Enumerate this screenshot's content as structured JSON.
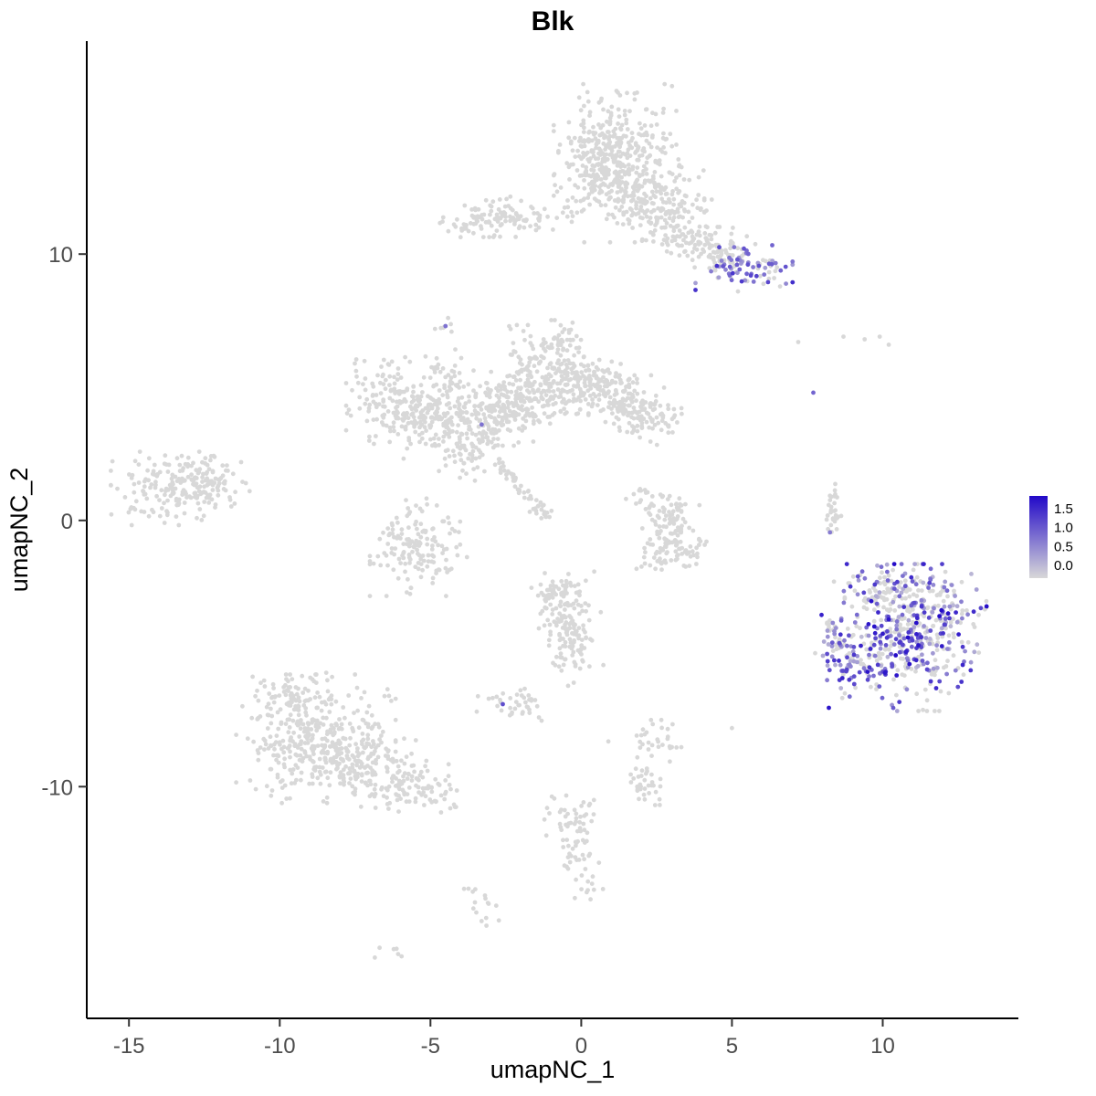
{
  "chart_data": {
    "type": "scatter",
    "title": "Blk",
    "xlabel": "umapNC_1",
    "ylabel": "umapNC_2",
    "xlim": [
      -16.4,
      14.5
    ],
    "ylim": [
      -18.7,
      18.0
    ],
    "xticks": [
      "-15",
      "-10",
      "-5",
      "0",
      "5",
      "10"
    ],
    "xtick_values": [
      -15,
      -10,
      -5,
      0,
      5,
      10
    ],
    "yticks": [
      "-10",
      "0",
      "10"
    ],
    "ytick_values": [
      -10,
      0,
      10
    ],
    "grid": false,
    "legend_position": "right",
    "value_range": [
      0,
      1.8
    ],
    "point_radius": 2.4,
    "colors": {
      "low": "#D8D8D8",
      "high": "#2209C8",
      "axis": "#000000",
      "tick_label": "#4d4d4d"
    },
    "legend": {
      "ticks": [
        "1.5",
        "1.0",
        "0.5",
        "0.0"
      ]
    },
    "clusters": [
      {
        "name": "top-main-core",
        "cx": 1.2,
        "cy": 14.2,
        "rx": 0.85,
        "ry": 0.95,
        "n": 230
      },
      {
        "name": "top-main-mid",
        "cx": 1.9,
        "cy": 12.4,
        "rx": 0.95,
        "ry": 0.85,
        "n": 200
      },
      {
        "name": "top-main-left",
        "cx": 0.7,
        "cy": 13.0,
        "rx": 0.7,
        "ry": 0.8,
        "n": 130
      },
      {
        "name": "top-main-low",
        "cx": 2.9,
        "cy": 11.3,
        "rx": 0.65,
        "ry": 0.55,
        "n": 100
      },
      {
        "name": "top-main-arm",
        "cx": 3.8,
        "cy": 10.6,
        "rx": 0.55,
        "ry": 0.45,
        "n": 55
      },
      {
        "name": "top-bridge",
        "cx": 4.6,
        "cy": 10.1,
        "rx": 0.5,
        "ry": 0.35,
        "n": 25
      },
      {
        "name": "top-left-bar",
        "cx": -2.5,
        "cy": 11.4,
        "rx": 0.95,
        "ry": 0.33,
        "n": 105
      },
      {
        "name": "top-left-tip",
        "cx": -3.9,
        "cy": 11.1,
        "rx": 0.3,
        "ry": 0.22,
        "n": 20
      },
      {
        "name": "blk-pos-small",
        "cx": 5.4,
        "cy": 9.5,
        "rx": 0.7,
        "ry": 0.38,
        "n": 75,
        "f": 0.85,
        "vr": [
          0.4,
          1.5
        ]
      },
      {
        "name": "blk-pos-small-gray",
        "cx": 4.8,
        "cy": 9.8,
        "rx": 0.45,
        "ry": 0.3,
        "n": 28
      },
      {
        "name": "top-right-sparse",
        "cx": 6.2,
        "cy": 9.2,
        "rx": 0.3,
        "ry": 0.25,
        "n": 8
      },
      {
        "name": "tiny-upper",
        "cx": -4.5,
        "cy": 7.3,
        "rx": 0.22,
        "ry": 0.2,
        "n": 7
      },
      {
        "name": "central-l1",
        "cx": -6.3,
        "cy": 4.6,
        "rx": 0.65,
        "ry": 0.75,
        "n": 120
      },
      {
        "name": "central-l2",
        "cx": -5.3,
        "cy": 3.7,
        "rx": 0.55,
        "ry": 0.6,
        "n": 85
      },
      {
        "name": "central-l3",
        "cx": -4.6,
        "cy": 5.5,
        "rx": 0.35,
        "ry": 0.4,
        "n": 30
      },
      {
        "name": "central-l4",
        "cx": -4.3,
        "cy": 4.3,
        "rx": 0.55,
        "ry": 0.65,
        "n": 100
      },
      {
        "name": "central-l5",
        "cx": -3.3,
        "cy": 3.7,
        "rx": 0.55,
        "ry": 0.6,
        "n": 100
      },
      {
        "name": "central-m1",
        "cx": -2.3,
        "cy": 4.3,
        "rx": 0.6,
        "ry": 0.65,
        "n": 115
      },
      {
        "name": "central-m2",
        "cx": -1.3,
        "cy": 4.9,
        "rx": 0.55,
        "ry": 0.55,
        "n": 100
      },
      {
        "name": "central-m3",
        "cx": -0.3,
        "cy": 5.4,
        "rx": 0.55,
        "ry": 0.6,
        "n": 105
      },
      {
        "name": "central-r1",
        "cx": 0.7,
        "cy": 4.9,
        "rx": 0.55,
        "ry": 0.55,
        "n": 95
      },
      {
        "name": "central-r2",
        "cx": 1.6,
        "cy": 4.3,
        "rx": 0.5,
        "ry": 0.5,
        "n": 80
      },
      {
        "name": "central-r3",
        "cx": 2.3,
        "cy": 3.7,
        "rx": 0.45,
        "ry": 0.45,
        "n": 60
      },
      {
        "name": "central-spur1",
        "cx": -1.6,
        "cy": 6.3,
        "rx": 0.4,
        "ry": 0.45,
        "n": 45
      },
      {
        "name": "central-spur2",
        "cx": -0.6,
        "cy": 6.6,
        "rx": 0.35,
        "ry": 0.4,
        "n": 35
      },
      {
        "name": "central-tail",
        "cx": -3.8,
        "cy": 2.4,
        "rx": 0.4,
        "ry": 0.5,
        "n": 45
      },
      {
        "name": "central-streak",
        "line": [
          -2.9,
          2.3,
          -1.1,
          0.1
        ],
        "j": 0.12,
        "n": 55
      },
      {
        "name": "far-left",
        "cx": -13.3,
        "cy": 1.2,
        "rx": 1.0,
        "ry": 0.6,
        "n": 190
      },
      {
        "name": "far-left-edge",
        "cx": -12.1,
        "cy": 1.6,
        "rx": 0.5,
        "ry": 0.4,
        "n": 40
      },
      {
        "name": "mid-left-low",
        "cx": -5.4,
        "cy": -1.0,
        "rx": 0.7,
        "ry": 0.8,
        "n": 150
      },
      {
        "name": "crescent-a",
        "cx": 2.4,
        "cy": 0.6,
        "rx": 0.4,
        "ry": 0.4,
        "n": 35
      },
      {
        "name": "crescent-b",
        "cx": 3.0,
        "cy": -0.1,
        "rx": 0.4,
        "ry": 0.5,
        "n": 50
      },
      {
        "name": "crescent-c",
        "cx": 3.2,
        "cy": -1.0,
        "rx": 0.45,
        "ry": 0.45,
        "n": 55
      },
      {
        "name": "crescent-d",
        "cx": 2.6,
        "cy": -1.4,
        "rx": 0.4,
        "ry": 0.3,
        "n": 30
      },
      {
        "name": "right-streak",
        "cx": 8.3,
        "cy": 0.5,
        "rx": 0.14,
        "ry": 0.55,
        "n": 30
      },
      {
        "name": "blk-pos-main",
        "cx": 10.8,
        "cy": -4.4,
        "rx": 1.15,
        "ry": 1.2,
        "n": 420,
        "f": 0.5,
        "vr": [
          0.2,
          1.8
        ]
      },
      {
        "name": "blk-pos-main-ne",
        "cx": 11.6,
        "cy": -3.2,
        "rx": 0.8,
        "ry": 0.6,
        "n": 80,
        "f": 0.4,
        "vr": [
          0.2,
          1.5
        ]
      },
      {
        "name": "blk-pos-spur",
        "cx": 8.35,
        "cy": -4.7,
        "rx": 0.3,
        "ry": 0.55,
        "n": 40,
        "f": 0.6,
        "vr": [
          0.3,
          1.6
        ]
      },
      {
        "name": "blk-pos-bridge",
        "cx": 9.2,
        "cy": -5.6,
        "rx": 0.45,
        "ry": 0.5,
        "n": 45,
        "f": 0.55,
        "vr": [
          0.3,
          1.6
        ]
      },
      {
        "name": "blk-pos-top-edge",
        "cx": 10.2,
        "cy": -2.5,
        "rx": 0.7,
        "ry": 0.4,
        "n": 60,
        "f": 0.45,
        "vr": [
          0.2,
          1.4
        ]
      },
      {
        "name": "center-bottom-a",
        "cx": -0.5,
        "cy": -3.3,
        "rx": 0.5,
        "ry": 0.6,
        "n": 80
      },
      {
        "name": "center-bottom-b",
        "cx": -0.3,
        "cy": -4.6,
        "rx": 0.45,
        "ry": 0.7,
        "n": 80
      },
      {
        "name": "center-bottom-c",
        "cx": -0.9,
        "cy": -2.6,
        "rx": 0.35,
        "ry": 0.3,
        "n": 25
      },
      {
        "name": "small-mid",
        "cx": -2.2,
        "cy": -6.9,
        "rx": 0.55,
        "ry": 0.33,
        "n": 38
      },
      {
        "name": "bottom-left-main",
        "cx": -8.8,
        "cy": -8.2,
        "rx": 1.15,
        "ry": 1.05,
        "n": 380
      },
      {
        "name": "bottom-left-ext",
        "cx": -7.0,
        "cy": -9.3,
        "rx": 0.8,
        "ry": 0.65,
        "n": 130
      },
      {
        "name": "bottom-left-tail",
        "cx": -5.6,
        "cy": -9.9,
        "rx": 0.6,
        "ry": 0.45,
        "n": 60
      },
      {
        "name": "bottom-left-top",
        "cx": -9.6,
        "cy": -6.6,
        "rx": 0.6,
        "ry": 0.4,
        "n": 45
      },
      {
        "name": "bottom-left-tip",
        "cx": -4.7,
        "cy": -10.3,
        "rx": 0.35,
        "ry": 0.3,
        "n": 20
      },
      {
        "name": "bottom-c1",
        "cx": 2.4,
        "cy": -8.3,
        "rx": 0.4,
        "ry": 0.35,
        "n": 30
      },
      {
        "name": "bottom-c2",
        "cx": 2.1,
        "cy": -9.8,
        "rx": 0.3,
        "ry": 0.45,
        "n": 35
      },
      {
        "name": "bottom-streak-a",
        "cx": -0.3,
        "cy": -11.2,
        "rx": 0.4,
        "ry": 0.5,
        "n": 45
      },
      {
        "name": "bottom-streak-b",
        "cx": -0.1,
        "cy": -12.7,
        "rx": 0.3,
        "ry": 0.5,
        "n": 28
      },
      {
        "name": "bottom-dribble",
        "cx": 0.3,
        "cy": -13.9,
        "rx": 0.25,
        "ry": 0.35,
        "n": 8
      },
      {
        "name": "bottom-small",
        "cx": -3.4,
        "cy": -14.3,
        "rx": 0.3,
        "ry": 0.4,
        "n": 16
      },
      {
        "name": "bottom-tiny",
        "cx": -6.2,
        "cy": -16.2,
        "rx": 0.3,
        "ry": 0.14,
        "n": 6
      }
    ],
    "singles": [
      [
        -3.3,
        3.6,
        0.9
      ],
      [
        7.7,
        4.8,
        1.0
      ],
      [
        -2.6,
        -6.9,
        1.2
      ],
      [
        8.25,
        -0.45,
        0.8
      ],
      [
        -4.5,
        7.3,
        0.9
      ],
      [
        5.0,
        -7.8,
        0
      ],
      [
        8.7,
        6.9,
        0
      ],
      [
        9.4,
        6.8,
        0
      ],
      [
        10.2,
        6.6,
        0
      ],
      [
        7.2,
        6.7,
        0
      ],
      [
        9.9,
        6.9,
        0
      ],
      [
        0.9,
        -8.3,
        0
      ],
      [
        -1.4,
        -7.4,
        0
      ],
      [
        6.4,
        9.1,
        0
      ],
      [
        5.2,
        8.6,
        0
      ],
      [
        3.9,
        9.9,
        0
      ]
    ]
  }
}
